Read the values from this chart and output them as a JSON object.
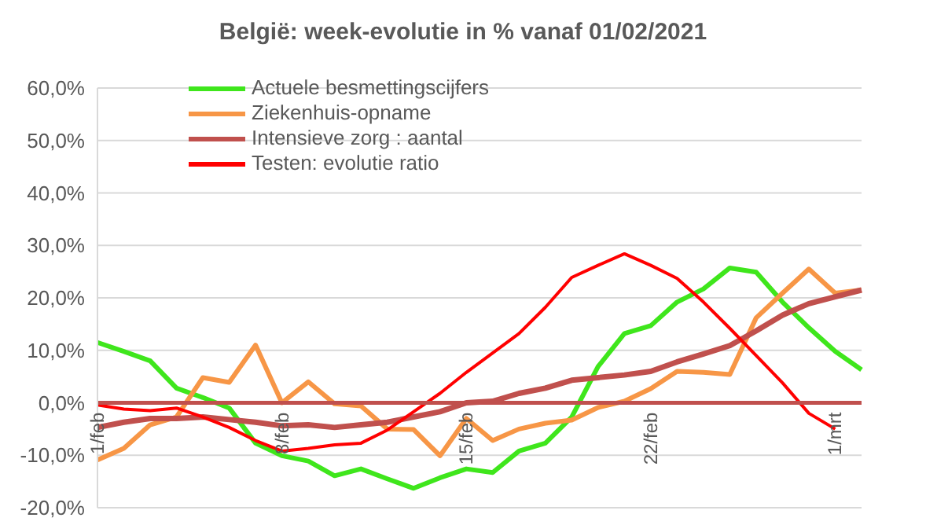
{
  "chart_data": {
    "type": "line",
    "title": "België: week-evolutie in %  vanaf 01/02/2021",
    "categories": [
      "1/feb",
      null,
      null,
      null,
      null,
      null,
      null,
      "8/feb",
      null,
      null,
      null,
      null,
      null,
      null,
      "15/feb",
      null,
      null,
      null,
      null,
      null,
      null,
      "22/feb",
      null,
      null,
      null,
      null,
      null,
      null,
      "1/mrt",
      null
    ],
    "series": [
      {
        "name": "Actuele besmettingscijfers",
        "color": "#3fe61c",
        "values": [
          11.5,
          9.8,
          8.0,
          2.8,
          1.0,
          -1.0,
          -7.7,
          -10.1,
          -11.1,
          -13.9,
          -12.6,
          -14.5,
          -16.3,
          -14.3,
          -12.6,
          -13.3,
          -9.2,
          -7.7,
          -2.7,
          6.9,
          13.2,
          14.7,
          19.2,
          21.7,
          25.7,
          24.9,
          19.2,
          14.3,
          9.8,
          6.3
        ]
      },
      {
        "name": "Ziekenhuis-opname",
        "color": "#f79646",
        "values": [
          -10.9,
          -8.7,
          -4.2,
          -2.7,
          4.8,
          3.9,
          11.0,
          0.0,
          4.0,
          -0.2,
          -0.6,
          -5.0,
          -5.1,
          -10.1,
          -3.0,
          -7.2,
          -5.0,
          -3.9,
          -3.3,
          -0.9,
          0.3,
          2.7,
          6.0,
          5.8,
          5.4,
          16.2,
          20.9,
          25.5,
          20.9,
          21.5
        ]
      },
      {
        "name": "Intensieve zorg : aantal",
        "color": "#c0504d",
        "values": [
          -4.7,
          -3.7,
          -3.0,
          -3.0,
          -2.7,
          -3.2,
          -3.7,
          -4.4,
          -4.2,
          -4.7,
          -4.2,
          -3.7,
          -2.7,
          -1.7,
          0.0,
          0.3,
          1.8,
          2.8,
          4.3,
          4.8,
          5.3,
          6.0,
          7.8,
          9.3,
          10.9,
          13.7,
          16.7,
          18.9,
          20.2,
          21.5
        ]
      },
      {
        "name": "Testen: evolutie ratio",
        "color": "#ff0000",
        "values": [
          -0.4,
          -1.2,
          -1.5,
          -1.0,
          -2.7,
          -4.7,
          -7.2,
          -9.2,
          -8.7,
          -8.0,
          -7.7,
          -5.2,
          -1.7,
          1.8,
          5.8,
          9.5,
          13.2,
          18.2,
          23.9,
          26.2,
          28.4,
          26.2,
          23.7,
          19.2,
          14.2,
          9.0,
          3.8,
          -2.0,
          -5.0,
          null
        ]
      },
      {
        "color": "#c0504d",
        "values": [
          0,
          0,
          0,
          0,
          0,
          0,
          0,
          0,
          0,
          0,
          0,
          0,
          0,
          0,
          0,
          0,
          0,
          0,
          0,
          0,
          0,
          0,
          0,
          0,
          0,
          0,
          0,
          0,
          0,
          0
        ]
      }
    ],
    "ylim": [
      -20,
      60
    ],
    "yticks": [
      {
        "value": -20,
        "label": "-20,0%"
      },
      {
        "value": -10,
        "label": "-10,0%"
      },
      {
        "value": 0,
        "label": "0,0%"
      },
      {
        "value": 10,
        "label": "10,0%"
      },
      {
        "value": 20,
        "label": "20,0%"
      },
      {
        "value": 30,
        "label": "30,0%"
      },
      {
        "value": 40,
        "label": "40,0%"
      },
      {
        "value": 50,
        "label": "50,0%"
      },
      {
        "value": 60,
        "label": "60,0%"
      }
    ],
    "grid": "y",
    "legend": "top",
    "marker": "none",
    "line_style": "solid"
  }
}
